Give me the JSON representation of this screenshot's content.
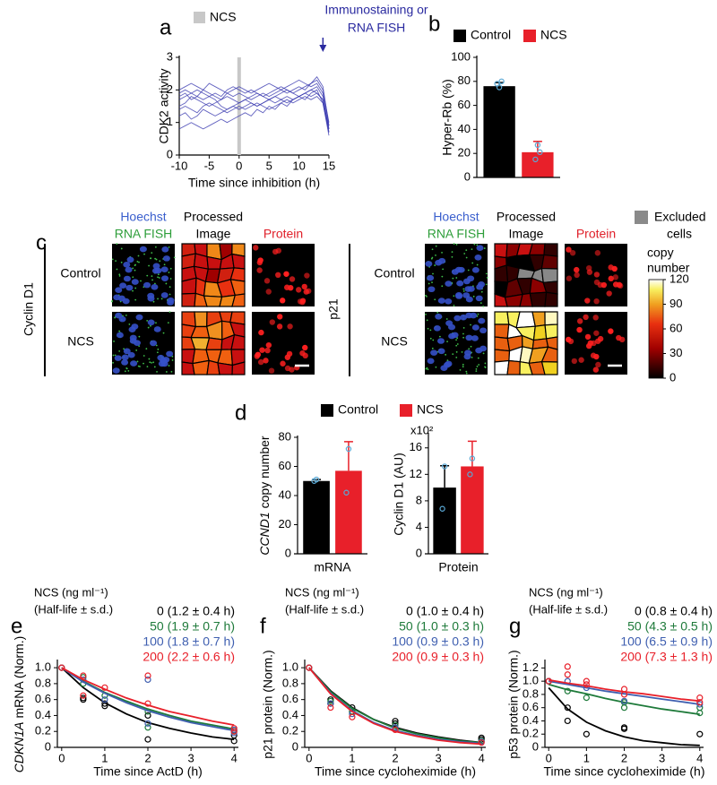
{
  "chart_data": [
    {
      "type": "line",
      "panel": "a",
      "xlabel": "Time since inhibition (h)",
      "ylabel": "CDK2 activity",
      "color": "#3b3bb0",
      "shaded_x": 0,
      "shade_label": "NCS",
      "shade_color": "#c8c8c8",
      "annotation": {
        "text": [
          "Immunostaining or",
          "RNA FISH"
        ],
        "x": 14
      },
      "x": [
        -10,
        -9,
        -8,
        -7,
        -6,
        -5,
        -4,
        -3,
        -2,
        -1,
        0,
        1,
        2,
        3,
        4,
        5,
        6,
        7,
        8,
        9,
        10,
        11,
        12,
        13,
        14,
        15
      ],
      "series": [
        {
          "values": [
            1.8,
            1.9,
            1.7,
            1.8,
            2.0,
            1.9,
            1.8,
            1.7,
            1.9,
            2.0,
            2.1,
            2.0,
            1.9,
            2.0,
            2.1,
            2.2,
            2.1,
            2.0,
            2.1,
            2.2,
            2.3,
            2.2,
            2.1,
            2.2,
            1.9,
            0.9
          ]
        },
        {
          "values": [
            1.5,
            1.6,
            1.8,
            1.7,
            1.6,
            1.5,
            1.6,
            1.7,
            1.8,
            1.7,
            1.6,
            1.7,
            1.8,
            1.9,
            1.8,
            1.7,
            1.8,
            1.9,
            2.0,
            1.9,
            1.8,
            1.9,
            2.0,
            2.1,
            1.8,
            0.7
          ]
        },
        {
          "values": [
            1.2,
            1.3,
            1.1,
            1.2,
            1.4,
            1.3,
            1.2,
            1.3,
            1.4,
            1.5,
            1.4,
            1.5,
            1.6,
            1.5,
            1.6,
            1.7,
            1.6,
            1.7,
            1.8,
            1.7,
            1.8,
            1.9,
            1.8,
            1.9,
            1.7,
            0.8
          ]
        },
        {
          "values": [
            2.0,
            2.1,
            2.2,
            2.1,
            2.0,
            2.2,
            2.1,
            2.0,
            1.9,
            1.8,
            1.9,
            1.8,
            1.7,
            1.8,
            1.9,
            1.8,
            1.9,
            2.0,
            1.9,
            2.0,
            2.1,
            2.0,
            2.2,
            2.3,
            2.0,
            1.0
          ]
        },
        {
          "values": [
            0.8,
            0.9,
            1.0,
            0.9,
            0.8,
            0.9,
            1.0,
            1.1,
            1.0,
            1.1,
            1.2,
            1.3,
            1.2,
            1.4,
            1.3,
            1.5,
            1.4,
            1.6,
            1.5,
            1.7,
            1.8,
            1.7,
            1.9,
            2.0,
            1.6,
            0.6
          ]
        },
        {
          "values": [
            1.7,
            1.8,
            1.9,
            2.0,
            1.9,
            1.8,
            1.7,
            1.5,
            1.4,
            1.5,
            1.6,
            1.7,
            1.6,
            1.5,
            1.6,
            1.7,
            1.8,
            1.7,
            1.6,
            1.7,
            1.8,
            1.9,
            2.0,
            1.9,
            1.7,
            0.8
          ]
        },
        {
          "values": [
            1.4,
            1.5,
            1.4,
            1.3,
            1.5,
            1.6,
            1.5,
            1.4,
            1.3,
            1.4,
            1.5,
            1.4,
            1.5,
            1.6,
            1.5,
            1.4,
            1.5,
            1.6,
            1.7,
            1.6,
            1.7,
            1.8,
            1.7,
            1.8,
            1.6,
            0.7
          ]
        },
        {
          "values": [
            1.9,
            2.0,
            1.9,
            1.8,
            1.7,
            1.8,
            1.9,
            1.8,
            2.0,
            2.1,
            2.0,
            1.9,
            2.0,
            1.9,
            1.8,
            1.9,
            2.0,
            2.1,
            2.0,
            1.9,
            2.0,
            2.1,
            2.2,
            2.4,
            2.1,
            0.9
          ]
        }
      ],
      "xlim": [
        -10,
        15
      ],
      "xticks": [
        -10,
        -5,
        0,
        5,
        10,
        15
      ],
      "ylim": [
        0,
        3
      ],
      "yticks": [
        0,
        1,
        2,
        3
      ]
    },
    {
      "type": "bar",
      "panel": "b",
      "ylabel": "Hyper-Rb (%)",
      "categories": [
        null
      ],
      "point_color": "#5aa9d6",
      "series": [
        {
          "name": "Control",
          "color": "#000000",
          "values": [
            76
          ],
          "errors": [
            3
          ],
          "points": [
            [
              78,
              75,
              80
            ]
          ]
        },
        {
          "name": "NCS",
          "color": "#e8202a",
          "values": [
            21
          ],
          "errors": [
            9
          ],
          "points": [
            [
              15,
              27,
              21
            ]
          ]
        }
      ],
      "ylim": [
        0,
        100
      ],
      "yticks": [
        0,
        20,
        40,
        60,
        80,
        100
      ]
    },
    {
      "type": "bar",
      "panel": "d",
      "ylabel": [
        "CCND1",
        "copy number"
      ],
      "xlabel": "mRNA",
      "categories": [
        null
      ],
      "point_color": "#5aa9d6",
      "series": [
        {
          "name": "Control",
          "color": "#000000",
          "values": [
            50
          ],
          "errors": [
            1
          ],
          "points": [
            [
              50,
              51
            ]
          ]
        },
        {
          "name": "NCS",
          "color": "#e8202a",
          "values": [
            57
          ],
          "errors": [
            20
          ],
          "points": [
            [
              42,
              72
            ]
          ]
        }
      ],
      "ylim": [
        0,
        80
      ],
      "yticks": [
        0,
        20,
        40,
        60,
        80
      ]
    },
    {
      "type": "bar",
      "ylabel": "Cyclin D1 (AU)",
      "y_multiplier": "x10²",
      "xlabel": "Protein",
      "categories": [
        null
      ],
      "point_color": "#5aa9d6",
      "series": [
        {
          "color": "#000000",
          "values": [
            10
          ],
          "errors": [
            3.3
          ],
          "points": [
            [
              6.8,
              13.2
            ]
          ]
        },
        {
          "color": "#e8202a",
          "values": [
            13.2
          ],
          "errors": [
            3.8
          ],
          "points": [
            [
              12,
              14.4
            ]
          ]
        }
      ],
      "ylim": [
        0,
        18
      ],
      "yticks": [
        0,
        4,
        8,
        12,
        16
      ]
    },
    {
      "type": "scatter",
      "panel": "e",
      "legend_title": [
        "NCS (ng ml⁻¹)",
        "(Half-life ± s.d.)"
      ],
      "xlabel": "Time since ActD (h)",
      "ylabel": [
        "CDKN1A",
        "mRNA (Norm.)"
      ],
      "fit_x": [
        0,
        0.5,
        1,
        1.5,
        2,
        2.5,
        3,
        3.5,
        4
      ],
      "series": [
        {
          "name": "0 (1.2 ± 0.4 h)",
          "color": "#000000",
          "x": [
            0,
            0.5,
            0.5,
            1,
            1,
            2,
            2,
            4,
            4
          ],
          "values": [
            1,
            0.62,
            0.6,
            0.55,
            0.52,
            0.4,
            0.1,
            0.15,
            0.08
          ],
          "fit": [
            1,
            0.75,
            0.56,
            0.42,
            0.31,
            0.24,
            0.18,
            0.13,
            0.1
          ]
        },
        {
          "name": "50 (1.9 ± 0.7 h)",
          "color": "#1e7a3a",
          "x": [
            0,
            0.5,
            0.5,
            1,
            2,
            2,
            4,
            4
          ],
          "values": [
            1,
            0.88,
            0.8,
            0.65,
            0.25,
            0.45,
            0.22,
            0.2
          ],
          "fit": [
            1,
            0.83,
            0.69,
            0.58,
            0.48,
            0.4,
            0.33,
            0.28,
            0.23
          ]
        },
        {
          "name": "100 (1.8 ± 0.7 h)",
          "color": "#3f5fb0",
          "x": [
            0,
            0.5,
            1,
            2,
            2,
            4,
            4
          ],
          "values": [
            1,
            0.85,
            0.6,
            0.85,
            0.3,
            0.22,
            0.18
          ],
          "fit": [
            1,
            0.82,
            0.68,
            0.56,
            0.46,
            0.38,
            0.31,
            0.26,
            0.21
          ]
        },
        {
          "name": "200 (2.2 ± 0.6 h)",
          "color": "#e8202a",
          "x": [
            0,
            0.5,
            0.5,
            1,
            2,
            2,
            4,
            4
          ],
          "values": [
            1,
            0.9,
            0.65,
            0.75,
            0.9,
            0.55,
            0.24,
            0.2
          ],
          "fit": [
            1,
            0.85,
            0.73,
            0.62,
            0.53,
            0.45,
            0.39,
            0.33,
            0.28
          ]
        }
      ],
      "xlim": [
        -0.1,
        4.1
      ],
      "xticks": [
        0,
        1,
        2,
        3,
        4
      ],
      "ylim": [
        0,
        1.08
      ],
      "yticks": [
        0,
        0.2,
        0.4,
        0.6,
        0.8,
        {
          "value": 1,
          "label": "1.0"
        }
      ]
    },
    {
      "type": "scatter",
      "panel": "f",
      "legend_title": [
        "NCS (ng ml⁻¹)",
        "(Half-life ± s.d.)"
      ],
      "xlabel": "Time since cycloheximide (h)",
      "ylabel": "p21 protein (Norm.)",
      "fit_x": [
        0,
        0.5,
        1,
        1.5,
        2,
        2.5,
        3,
        3.5,
        4
      ],
      "series": [
        {
          "name": "0 (1.0 ± 0.4 h)",
          "color": "#000000",
          "x": [
            0,
            0.5,
            0.5,
            1,
            1,
            2,
            2,
            4,
            4
          ],
          "values": [
            1,
            0.6,
            0.55,
            0.45,
            0.5,
            0.33,
            0.3,
            0.12,
            0.1
          ],
          "fit": [
            1,
            0.71,
            0.5,
            0.35,
            0.25,
            0.18,
            0.13,
            0.09,
            0.06
          ]
        },
        {
          "name": "50 (1.0 ± 0.3 h)",
          "color": "#1e7a3a",
          "x": [
            0,
            0.5,
            1,
            2,
            4
          ],
          "values": [
            1,
            0.58,
            0.45,
            0.28,
            0.08
          ],
          "fit": [
            1,
            0.7,
            0.49,
            0.35,
            0.24,
            0.17,
            0.12,
            0.08,
            0.06
          ]
        },
        {
          "name": "100 (0.9 ± 0.3 h)",
          "color": "#3f5fb0",
          "x": [
            0,
            0.5,
            1,
            2,
            4
          ],
          "values": [
            1,
            0.55,
            0.42,
            0.25,
            0.07
          ],
          "fit": [
            1,
            0.68,
            0.46,
            0.31,
            0.21,
            0.15,
            0.1,
            0.07,
            0.05
          ]
        },
        {
          "name": "200 (0.9 ± 0.3 h)",
          "color": "#e8202a",
          "x": [
            0,
            0.5,
            1,
            2,
            4
          ],
          "values": [
            1,
            0.5,
            0.38,
            0.22,
            0.06
          ],
          "fit": [
            1,
            0.67,
            0.45,
            0.3,
            0.2,
            0.14,
            0.09,
            0.06,
            0.04
          ]
        }
      ],
      "xlim": [
        -0.1,
        4.1
      ],
      "xticks": [
        0,
        1,
        2,
        3,
        4
      ],
      "ylim": [
        0,
        1.08
      ],
      "yticks": [
        0,
        0.2,
        0.4,
        0.6,
        0.8,
        {
          "value": 1,
          "label": "1.0"
        }
      ]
    },
    {
      "type": "scatter",
      "panel": "g",
      "legend_title": [
        "NCS (ng ml⁻¹)",
        "(Half-life ± s.d.)"
      ],
      "xlabel": "Time since cycloheximide (h)",
      "ylabel": "p53 protein (Norm.)",
      "fit_x": [
        0,
        0.5,
        1,
        1.5,
        2,
        2.5,
        3,
        3.5,
        4
      ],
      "series": [
        {
          "name": "0 (0.8 ± 0.4 h)",
          "color": "#000000",
          "x": [
            0,
            0.5,
            0.5,
            1,
            2,
            2,
            4
          ],
          "values": [
            1,
            0.6,
            0.4,
            0.2,
            0.3,
            0.28,
            0.2
          ],
          "fit": [
            0.9,
            0.58,
            0.38,
            0.25,
            0.16,
            0.1,
            0.07,
            0.04,
            0.03
          ]
        },
        {
          "name": "50 (4.3 ± 0.5 h)",
          "color": "#1e7a3a",
          "x": [
            0,
            0.5,
            1,
            2,
            2,
            4,
            4
          ],
          "values": [
            1,
            0.85,
            0.75,
            0.68,
            0.6,
            0.52,
            0.6
          ],
          "fit": [
            0.95,
            0.87,
            0.81,
            0.74,
            0.68,
            0.63,
            0.58,
            0.54,
            0.5
          ]
        },
        {
          "name": "100 (6.5 ± 0.9 h)",
          "color": "#3f5fb0",
          "x": [
            0,
            0.5,
            1,
            2,
            4
          ],
          "values": [
            1,
            1.0,
            0.9,
            0.7,
            0.65
          ],
          "fit": [
            1,
            0.95,
            0.9,
            0.85,
            0.81,
            0.77,
            0.73,
            0.69,
            0.65
          ]
        },
        {
          "name": "200 (7.3 ± 1.3 h)",
          "color": "#e8202a",
          "x": [
            0,
            0.5,
            0.5,
            1,
            1,
            2,
            2,
            4,
            4
          ],
          "values": [
            1,
            1.22,
            1.1,
            0.95,
            1.0,
            0.8,
            0.88,
            0.75,
            0.68
          ],
          "fit": [
            1.02,
            0.97,
            0.93,
            0.88,
            0.84,
            0.81,
            0.77,
            0.73,
            0.7
          ]
        }
      ],
      "xlim": [
        -0.1,
        4.1
      ],
      "xticks": [
        0,
        1,
        2,
        3,
        4
      ],
      "ylim": [
        0,
        1.3
      ],
      "yticks": [
        0,
        0.2,
        0.4,
        0.6,
        0.8,
        {
          "value": 1,
          "label": "1.0"
        },
        1.2
      ]
    }
  ],
  "panel_c": {
    "panel": "c",
    "groups": [
      {
        "gene": "Cyclin D1",
        "rows": [
          "Control",
          "NCS"
        ],
        "columns": [
          [
            "Hoechst",
            "RNA FISH"
          ],
          [
            "Processed",
            "Image"
          ],
          [
            "Protein"
          ]
        ]
      },
      {
        "gene": "p21",
        "rows": [
          "Control",
          "NCS"
        ],
        "columns": [
          [
            "Hoechst",
            "RNA FISH"
          ],
          [
            "Processed",
            "Image"
          ],
          [
            "Protein"
          ]
        ]
      }
    ],
    "excluded_label": [
      "Excluded",
      "cells"
    ],
    "colorbar": {
      "label": [
        "copy",
        "number"
      ],
      "lim": [
        0,
        120
      ],
      "ticks": [
        0,
        30,
        60,
        90,
        120
      ]
    }
  }
}
